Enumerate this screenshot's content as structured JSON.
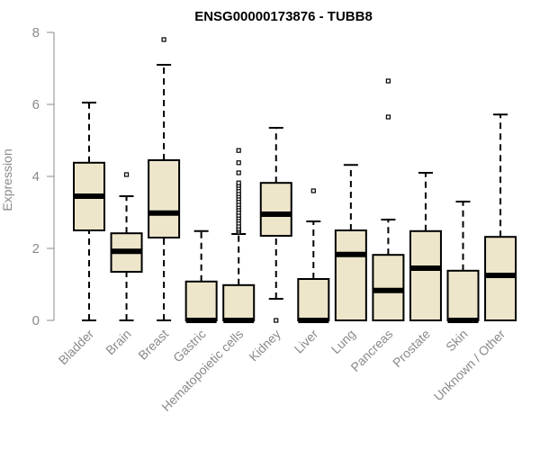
{
  "chart_data": {
    "type": "box",
    "title": "ENSG00000173876 - TUBB8",
    "xlabel": "",
    "ylabel": "Expression",
    "ylim": [
      0,
      8
    ],
    "yticks": [
      0,
      2,
      4,
      6,
      8
    ],
    "grid": false,
    "legend": "none",
    "box_fill": "#ede6cb",
    "box_stroke": "#000000",
    "axis_color": "#8a8a8a",
    "categories": [
      "Bladder",
      "Brain",
      "Breast",
      "Gastric",
      "Hematopoietic cells",
      "Kidney",
      "Liver",
      "Lung",
      "Pancreas",
      "Prostate",
      "Skin",
      "Unknown / Other"
    ],
    "boxes": [
      {
        "name": "Bladder",
        "whisker_low": 0,
        "q1": 2.5,
        "median": 3.45,
        "q3": 4.38,
        "whisker_high": 6.05,
        "outliers": []
      },
      {
        "name": "Brain",
        "whisker_low": 0,
        "q1": 1.35,
        "median": 1.92,
        "q3": 2.42,
        "whisker_high": 3.45,
        "outliers": [
          4.05
        ]
      },
      {
        "name": "Breast",
        "whisker_low": 0,
        "q1": 2.3,
        "median": 2.98,
        "q3": 4.45,
        "whisker_high": 7.1,
        "outliers": [
          7.8
        ]
      },
      {
        "name": "Gastric",
        "whisker_low": 0,
        "q1": 0,
        "median": 0,
        "q3": 1.08,
        "whisker_high": 2.48,
        "outliers": []
      },
      {
        "name": "Hematopoietic cells",
        "whisker_low": 0,
        "q1": 0,
        "median": 0,
        "q3": 0.98,
        "whisker_high": 2.4,
        "outliers": [
          2.45,
          2.5,
          2.55,
          2.62,
          2.7,
          2.78,
          2.85,
          2.92,
          3.0,
          3.08,
          3.15,
          3.22,
          3.3,
          3.38,
          3.45,
          3.52,
          3.6,
          3.68,
          3.75,
          3.82,
          4.1,
          4.38,
          4.72
        ]
      },
      {
        "name": "Kidney",
        "whisker_low": 0.6,
        "q1": 2.35,
        "median": 2.95,
        "q3": 3.82,
        "whisker_high": 5.35,
        "outliers": [
          0
        ]
      },
      {
        "name": "Liver",
        "whisker_low": 0,
        "q1": 0,
        "median": 0,
        "q3": 1.15,
        "whisker_high": 2.75,
        "outliers": [
          3.6
        ]
      },
      {
        "name": "Lung",
        "whisker_low": 0,
        "q1": 0,
        "median": 1.83,
        "q3": 2.5,
        "whisker_high": 4.32,
        "outliers": []
      },
      {
        "name": "Pancreas",
        "whisker_low": 0,
        "q1": 0,
        "median": 0.83,
        "q3": 1.82,
        "whisker_high": 2.8,
        "outliers": [
          5.65,
          6.65
        ]
      },
      {
        "name": "Prostate",
        "whisker_low": 0,
        "q1": 0,
        "median": 1.45,
        "q3": 2.48,
        "whisker_high": 4.1,
        "outliers": []
      },
      {
        "name": "Skin",
        "whisker_low": 0,
        "q1": 0,
        "median": 0,
        "q3": 1.38,
        "whisker_high": 3.3,
        "outliers": []
      },
      {
        "name": "Unknown / Other",
        "whisker_low": 0,
        "q1": 0,
        "median": 1.25,
        "q3": 2.32,
        "whisker_high": 5.72,
        "outliers": []
      }
    ]
  }
}
